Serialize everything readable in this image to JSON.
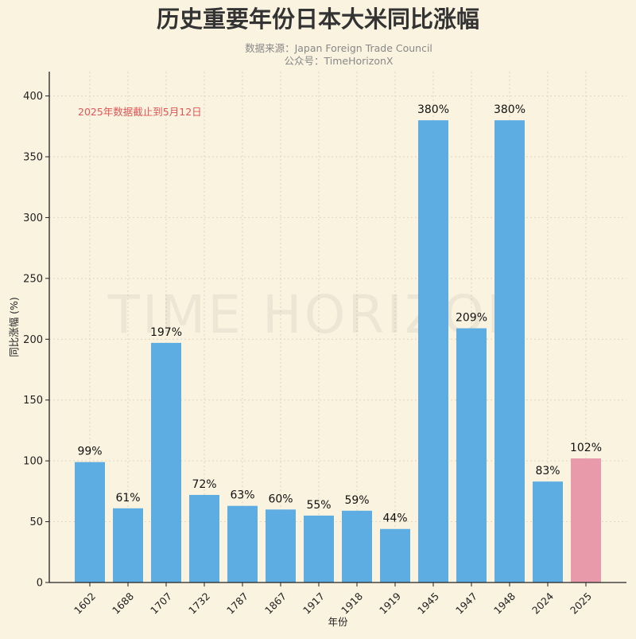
{
  "chart_data": {
    "type": "bar",
    "title": "历史重要年份日本大米同比涨幅",
    "subtitle_lines": [
      "数据来源：Japan Foreign Trade Council",
      "公众号：TimeHorizonX"
    ],
    "annotation": "2025年数据截止到5月12日",
    "watermark": "TIME HORIZON",
    "xlabel": "年份",
    "ylabel": "同比涨幅 (%)",
    "ylim": [
      0,
      420
    ],
    "yticks": [
      0,
      50,
      100,
      150,
      200,
      250,
      300,
      350,
      400
    ],
    "grid": true,
    "categories": [
      "1602",
      "1688",
      "1707",
      "1732",
      "1787",
      "1867",
      "1917",
      "1918",
      "1919",
      "1945",
      "1947",
      "1948",
      "2024",
      "2025"
    ],
    "values": [
      99,
      61,
      197,
      72,
      63,
      60,
      55,
      59,
      44,
      380,
      209,
      380,
      83,
      102
    ],
    "data_labels": [
      "99%",
      "61%",
      "197%",
      "72%",
      "63%",
      "60%",
      "55%",
      "59%",
      "44%",
      "380%",
      "209%",
      "380%",
      "83%",
      "102%"
    ],
    "colors": {
      "default": "#5dade2",
      "highlight": "#e89aab",
      "annotation": "#e05555",
      "background": "#faf3e0"
    },
    "highlight_category": "2025"
  }
}
